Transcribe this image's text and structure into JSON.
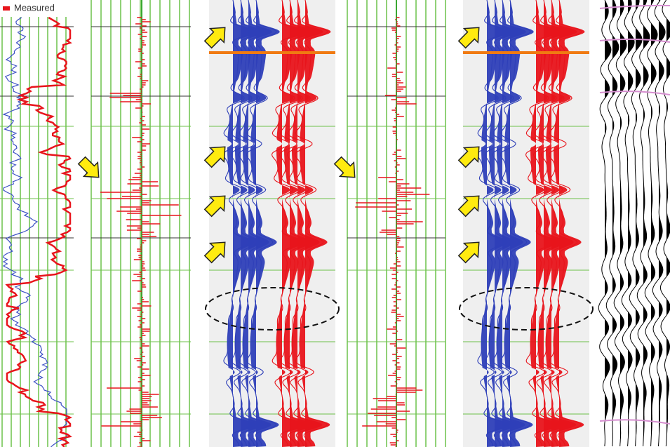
{
  "legend": {
    "label": "Measured"
  }
}
